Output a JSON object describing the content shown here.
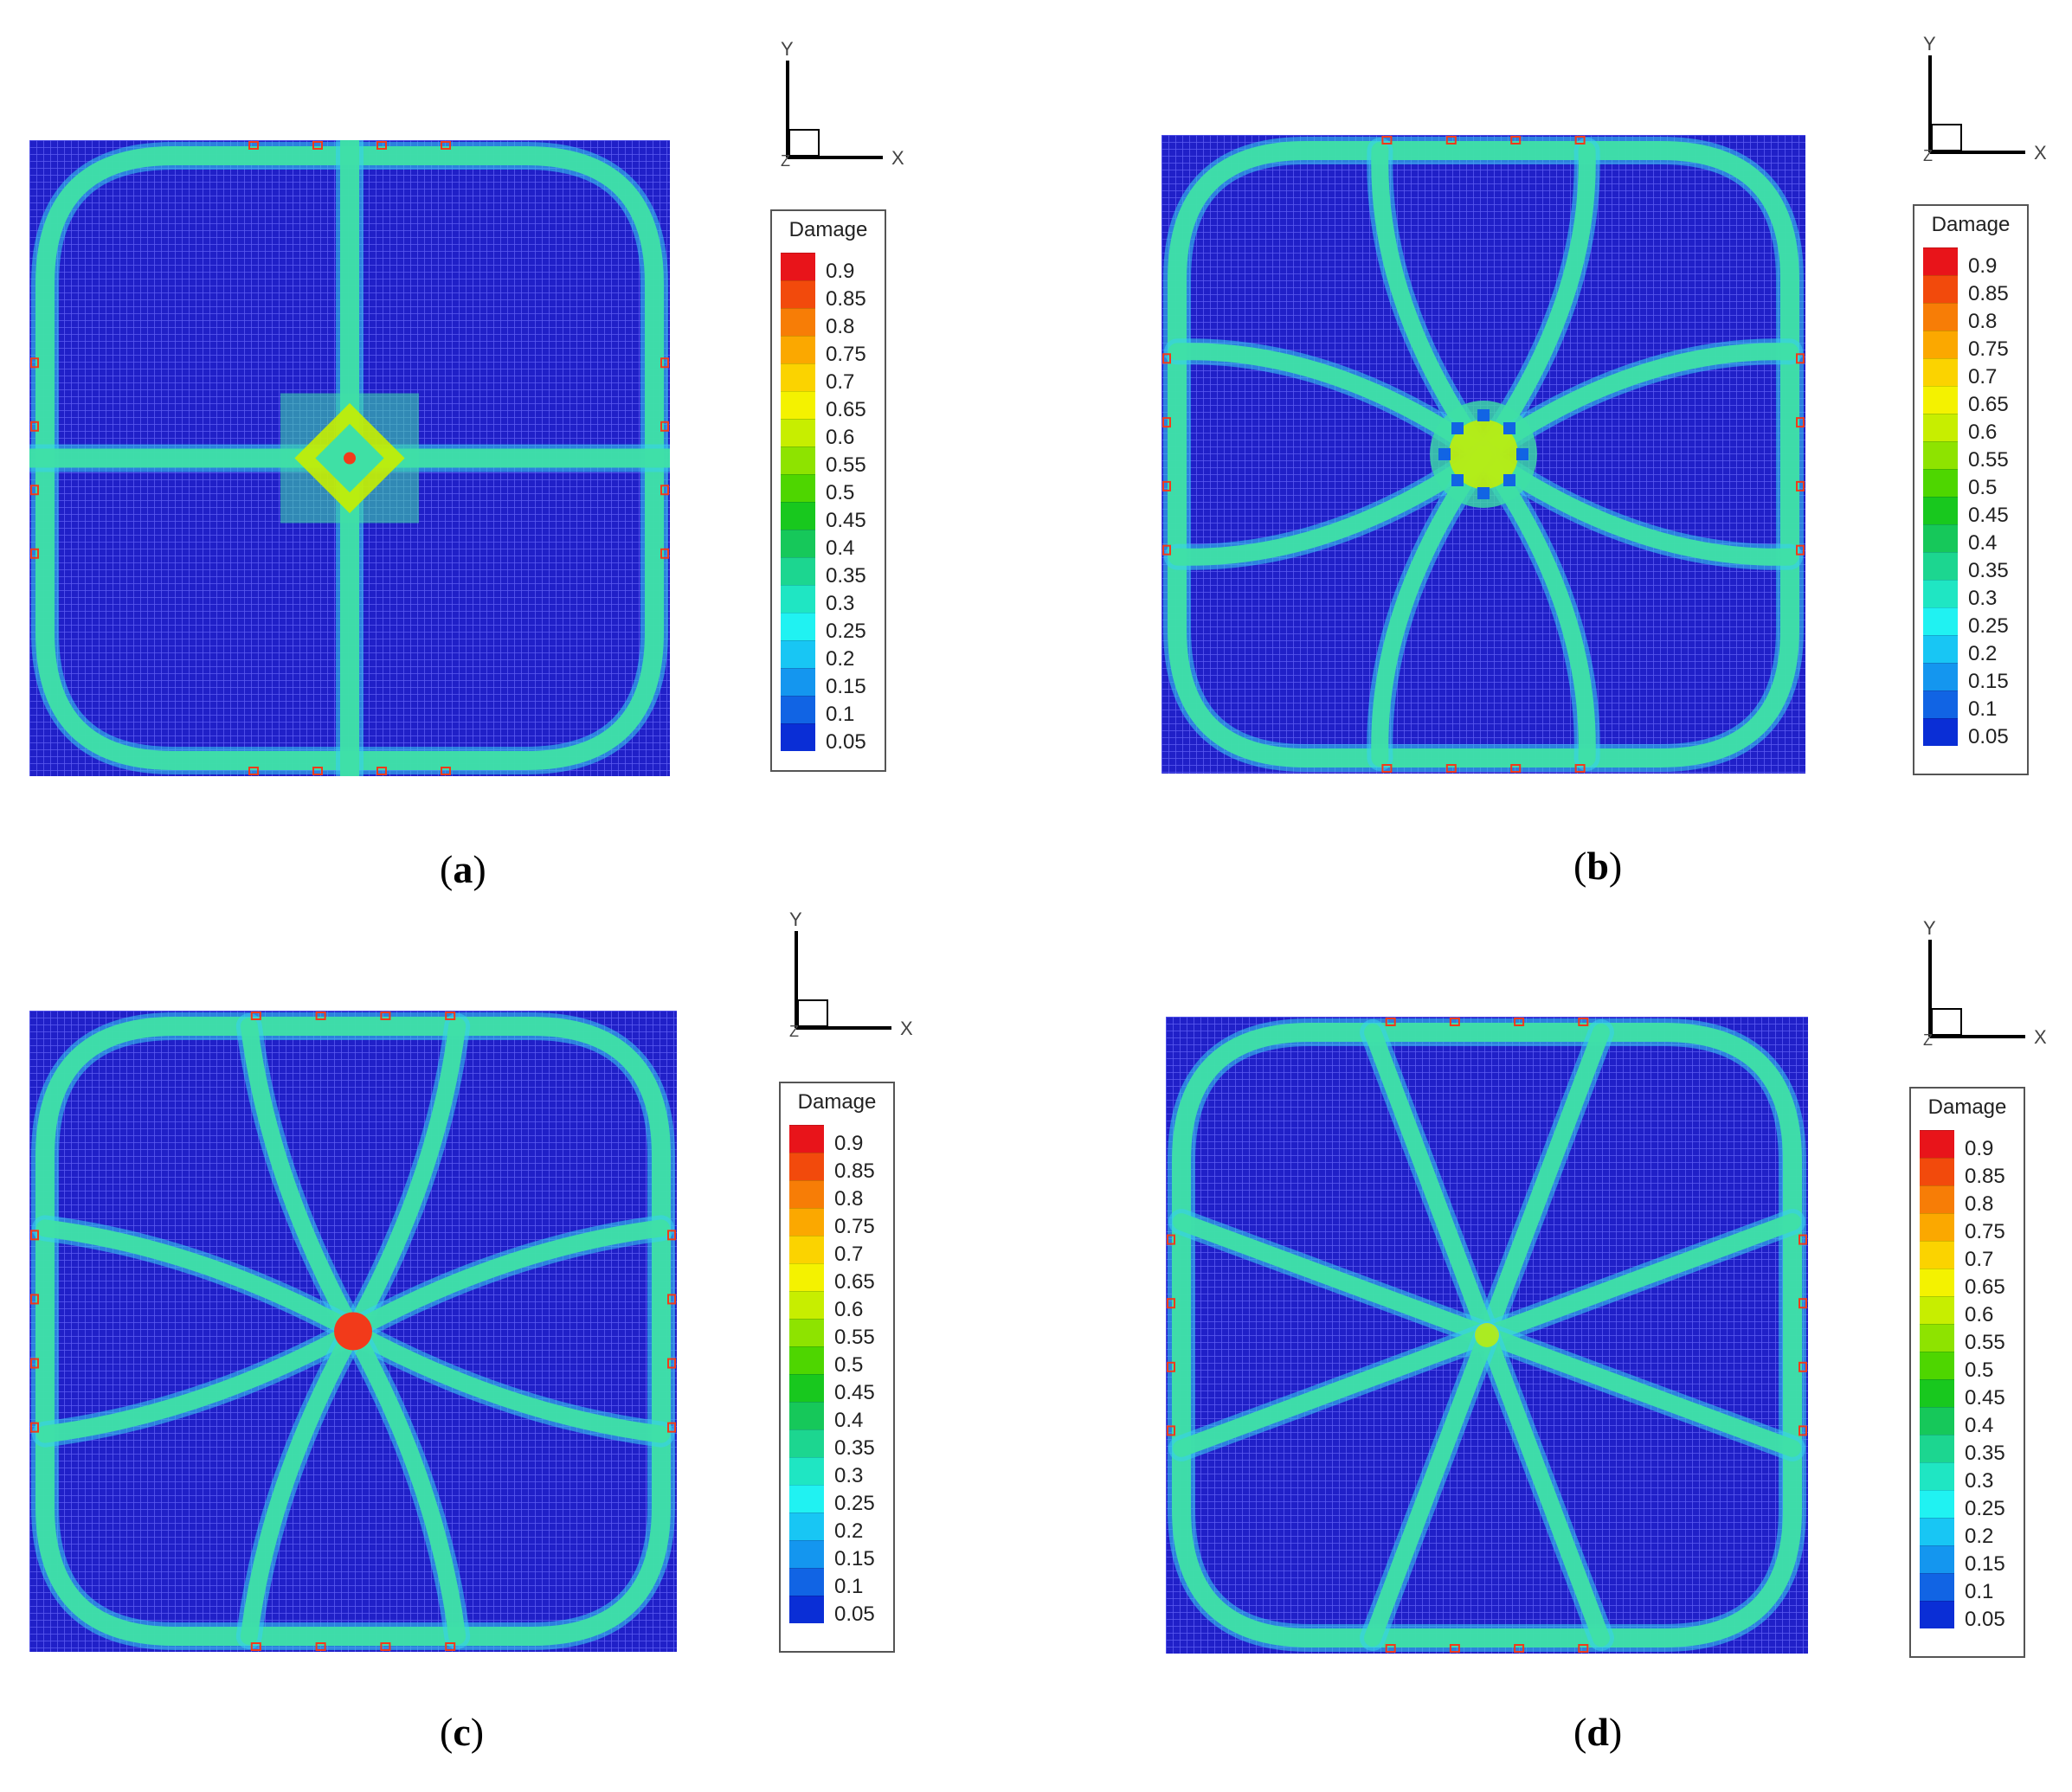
{
  "panels": [
    {
      "id": "a",
      "caption_letter": "a",
      "pattern": "cross"
    },
    {
      "id": "b",
      "caption_letter": "b",
      "pattern": "radial8-curved"
    },
    {
      "id": "c",
      "caption_letter": "c",
      "pattern": "radial8-wavy"
    },
    {
      "id": "d",
      "caption_letter": "d",
      "pattern": "radial8-straight"
    }
  ],
  "axes": {
    "y_label": "Y",
    "x_label": "X",
    "z_label": "Z"
  },
  "legend": {
    "title": "Damage",
    "labels": [
      "0.9",
      "0.85",
      "0.8",
      "0.75",
      "0.7",
      "0.65",
      "0.6",
      "0.55",
      "0.5",
      "0.45",
      "0.4",
      "0.35",
      "0.3",
      "0.25",
      "0.2",
      "0.15",
      "0.1",
      "0.05"
    ],
    "colors": [
      "#e8141a",
      "#f24a0c",
      "#f77d06",
      "#fba800",
      "#fbd300",
      "#f4f200",
      "#c7ee00",
      "#8ee300",
      "#4ed600",
      "#18c81e",
      "#16c85a",
      "#1cd690",
      "#1fe6c3",
      "#20f2f2",
      "#18c6f4",
      "#1496ef",
      "#1164e4",
      "#0a2ed6"
    ]
  },
  "colors": {
    "mesh_background": "#2020c8",
    "mesh_grid": "#5a5af0",
    "band": "#3fe0a5",
    "band_edge": "#37d0f0",
    "hot": "#f23a1a"
  }
}
